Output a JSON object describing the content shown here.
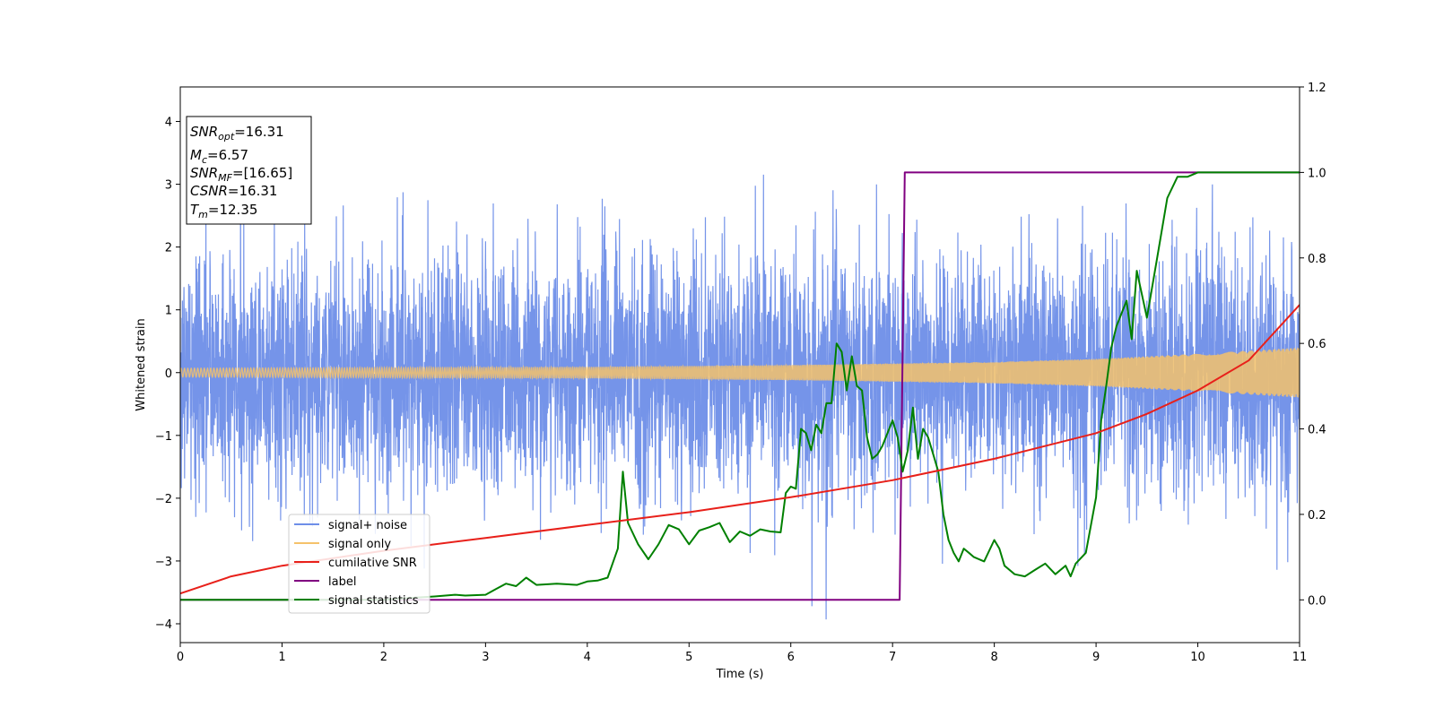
{
  "chart_data": {
    "type": "line",
    "title": "",
    "xlabel": "Time (s)",
    "ylabel": "Whitened strain",
    "xlim": [
      0,
      11
    ],
    "ylim": [
      -4.3,
      4.55
    ],
    "y2lim": [
      -0.1,
      1.2
    ],
    "xticks": [
      0,
      1,
      2,
      3,
      4,
      5,
      6,
      7,
      8,
      9,
      10,
      11
    ],
    "yticks": [
      -4,
      -3,
      -2,
      -1,
      0,
      1,
      2,
      3,
      4
    ],
    "y2ticks": [
      "0.0",
      "0.2",
      "0.4",
      "0.6",
      "0.8",
      "1.0",
      "1.2"
    ],
    "legend_position": "lower-left",
    "grid": false,
    "info_box": [
      {
        "base": "SNR",
        "sub": "opt",
        "value": "=16.31"
      },
      {
        "base": "M",
        "sub": "c",
        "value": "=6.57"
      },
      {
        "base": "SNR",
        "sub": "MF",
        "value": "=[16.65]"
      },
      {
        "base": "CSNR",
        "sub": "",
        "value": "=16.31"
      },
      {
        "base": "T",
        "sub": "m",
        "value": "=12.35"
      }
    ],
    "series": [
      {
        "name": "signal+ noise",
        "axis": "left",
        "color": "#6e8ee8",
        "kind": "noise_band",
        "envelope_sigma": 0.95,
        "peak_max": 4.17
      },
      {
        "name": "signal only",
        "axis": "left",
        "color": "#f5c26b",
        "kind": "chirp",
        "amplitude": {
          "x": [
            0,
            2,
            4,
            6,
            8,
            9,
            10,
            11
          ],
          "y": [
            0.07,
            0.08,
            0.09,
            0.12,
            0.17,
            0.22,
            0.3,
            0.4
          ]
        }
      },
      {
        "name": "cumilative SNR",
        "axis": "right",
        "color": "#e8201a",
        "kind": "line",
        "x": [
          0,
          0.5,
          1,
          2,
          3,
          4,
          5,
          6,
          7,
          8,
          9,
          9.5,
          10,
          10.5,
          11
        ],
        "y": [
          0.015,
          0.055,
          0.08,
          0.115,
          0.145,
          0.175,
          0.205,
          0.24,
          0.28,
          0.33,
          0.39,
          0.435,
          0.49,
          0.56,
          0.69
        ]
      },
      {
        "name": "label",
        "axis": "right",
        "color": "#800080",
        "kind": "line",
        "x": [
          0,
          7.07,
          7.12,
          11
        ],
        "y": [
          0,
          0,
          1,
          1
        ]
      },
      {
        "name": "signal statistics",
        "axis": "right",
        "color": "#008000",
        "kind": "line",
        "x": [
          0,
          0.5,
          1,
          1.5,
          2,
          2.3,
          2.5,
          2.7,
          2.8,
          3.0,
          3.1,
          3.2,
          3.3,
          3.4,
          3.5,
          3.7,
          3.9,
          4.0,
          4.1,
          4.2,
          4.3,
          4.35,
          4.4,
          4.5,
          4.6,
          4.7,
          4.8,
          4.9,
          5.0,
          5.1,
          5.2,
          5.3,
          5.4,
          5.5,
          5.6,
          5.7,
          5.8,
          5.9,
          5.95,
          6.0,
          6.05,
          6.1,
          6.15,
          6.2,
          6.25,
          6.3,
          6.35,
          6.4,
          6.45,
          6.5,
          6.55,
          6.6,
          6.65,
          6.7,
          6.75,
          6.8,
          6.85,
          6.9,
          6.95,
          7.0,
          7.05,
          7.1,
          7.15,
          7.2,
          7.25,
          7.3,
          7.35,
          7.4,
          7.45,
          7.5,
          7.55,
          7.6,
          7.65,
          7.7,
          7.75,
          7.8,
          7.9,
          8.0,
          8.05,
          8.1,
          8.2,
          8.3,
          8.4,
          8.5,
          8.6,
          8.7,
          8.75,
          8.8,
          8.9,
          9.0,
          9.05,
          9.1,
          9.15,
          9.2,
          9.3,
          9.35,
          9.4,
          9.5,
          9.6,
          9.7,
          9.8,
          9.9,
          10.0,
          10.2,
          10.5,
          11
        ],
        "y": [
          0,
          0,
          0,
          0,
          0,
          0.005,
          0.008,
          0.012,
          0.01,
          0.012,
          0.025,
          0.038,
          0.032,
          0.052,
          0.035,
          0.038,
          0.035,
          0.043,
          0.045,
          0.052,
          0.12,
          0.3,
          0.18,
          0.13,
          0.095,
          0.13,
          0.175,
          0.165,
          0.13,
          0.162,
          0.17,
          0.18,
          0.135,
          0.16,
          0.15,
          0.165,
          0.16,
          0.158,
          0.25,
          0.265,
          0.26,
          0.4,
          0.39,
          0.35,
          0.41,
          0.39,
          0.46,
          0.46,
          0.6,
          0.58,
          0.49,
          0.57,
          0.5,
          0.49,
          0.38,
          0.33,
          0.34,
          0.36,
          0.39,
          0.42,
          0.38,
          0.3,
          0.35,
          0.45,
          0.33,
          0.4,
          0.38,
          0.34,
          0.3,
          0.2,
          0.14,
          0.11,
          0.09,
          0.12,
          0.11,
          0.1,
          0.09,
          0.14,
          0.12,
          0.08,
          0.06,
          0.055,
          0.07,
          0.085,
          0.06,
          0.08,
          0.055,
          0.085,
          0.11,
          0.24,
          0.42,
          0.5,
          0.59,
          0.64,
          0.7,
          0.61,
          0.77,
          0.66,
          0.8,
          0.94,
          0.99,
          0.99,
          1.0,
          1.0,
          1.0,
          1.0
        ]
      }
    ]
  }
}
